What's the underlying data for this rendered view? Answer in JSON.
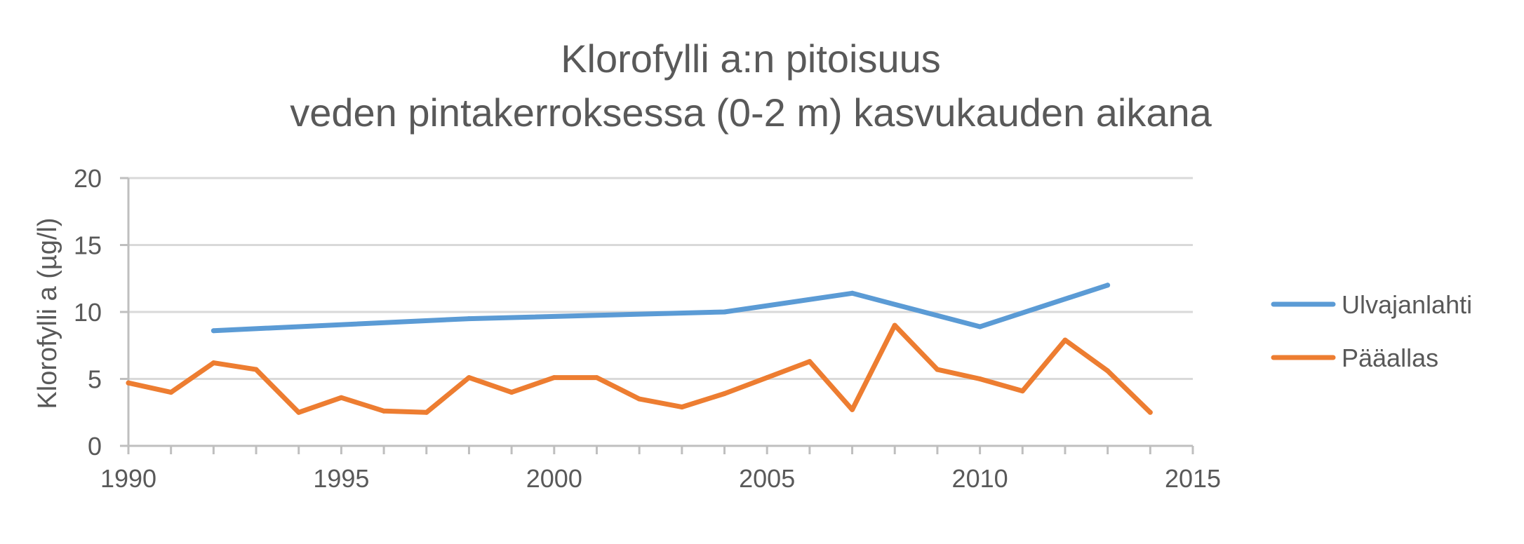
{
  "chart_data": {
    "type": "line",
    "title_lines": [
      "Klorofylli a:n pitoisuus",
      "veden pintakerroksessa (0-2 m) kasvukauden aikana"
    ],
    "xlabel": "",
    "ylabel": "Klorofylli a (µg/l)",
    "xlim": [
      1990,
      2015
    ],
    "ylim": [
      0,
      20
    ],
    "x_ticks": [
      1990,
      1995,
      2000,
      2005,
      2010,
      2015
    ],
    "y_ticks": [
      0,
      5,
      10,
      15,
      20
    ],
    "grid": true,
    "legend_position": "right",
    "series": [
      {
        "name": "Ulvajanlahti",
        "color": "#5b9bd5",
        "points": [
          [
            1992,
            8.6
          ],
          [
            1998,
            9.5
          ],
          [
            2004,
            10.0
          ],
          [
            2007,
            11.4
          ],
          [
            2010,
            8.9
          ],
          [
            2013,
            12.0
          ]
        ]
      },
      {
        "name": "Pääallas",
        "color": "#ed7d31",
        "points": [
          [
            1990,
            4.7
          ],
          [
            1991,
            4.0
          ],
          [
            1992,
            6.2
          ],
          [
            1993,
            5.7
          ],
          [
            1994,
            2.5
          ],
          [
            1995,
            3.6
          ],
          [
            1996,
            2.6
          ],
          [
            1997,
            2.5
          ],
          [
            1998,
            5.1
          ],
          [
            1999,
            4.0
          ],
          [
            2000,
            5.1
          ],
          [
            2001,
            5.1
          ],
          [
            2002,
            3.5
          ],
          [
            2003,
            2.9
          ],
          [
            2004,
            3.9
          ],
          [
            2005,
            5.1
          ],
          [
            2006,
            6.3
          ],
          [
            2007,
            2.7
          ],
          [
            2008,
            9.0
          ],
          [
            2009,
            5.7
          ],
          [
            2010,
            5.0
          ],
          [
            2011,
            4.1
          ],
          [
            2012,
            7.9
          ],
          [
            2013,
            5.6
          ],
          [
            2014,
            2.5
          ]
        ]
      }
    ]
  }
}
